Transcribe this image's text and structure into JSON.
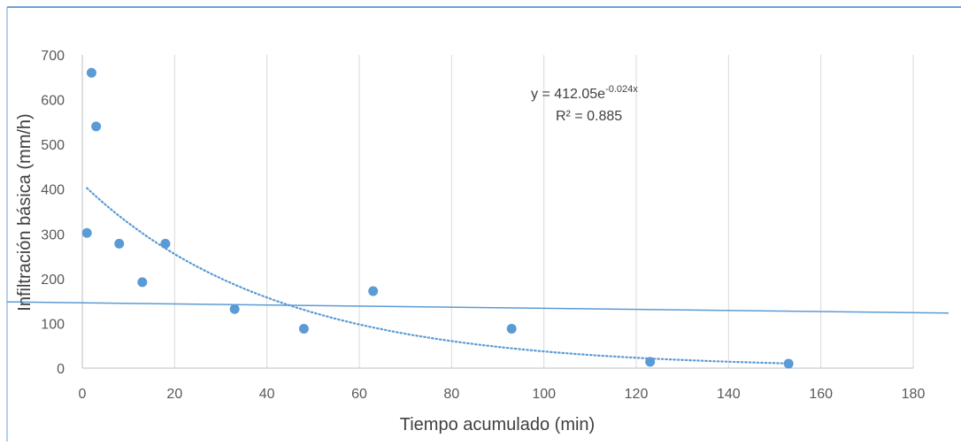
{
  "chart_data": {
    "type": "scatter",
    "title": "",
    "xlabel": "Tiempo acumulado (min)",
    "ylabel": "Infiltración básica (mm/h)",
    "xlim": [
      0,
      180
    ],
    "ylim": [
      0,
      700
    ],
    "xticks": [
      "0",
      "20",
      "40",
      "60",
      "80",
      "100",
      "120",
      "140",
      "160",
      "180"
    ],
    "yticks": [
      "0",
      "100",
      "200",
      "300",
      "400",
      "500",
      "600",
      "700"
    ],
    "grid": "vertical",
    "series": [
      {
        "color": "#5b9bd5",
        "points": [
          {
            "x": 1,
            "y": 302
          },
          {
            "x": 2,
            "y": 660
          },
          {
            "x": 3,
            "y": 540
          },
          {
            "x": 8,
            "y": 278
          },
          {
            "x": 13,
            "y": 192
          },
          {
            "x": 18,
            "y": 278
          },
          {
            "x": 33,
            "y": 132
          },
          {
            "x": 48,
            "y": 88
          },
          {
            "x": 63,
            "y": 172
          },
          {
            "x": 93,
            "y": 88
          },
          {
            "x": 123,
            "y": 14
          },
          {
            "x": 153,
            "y": 10
          }
        ]
      }
    ],
    "trendline": {
      "type": "exponential",
      "a": 412.05,
      "b": -0.024,
      "x_range": [
        1,
        153
      ],
      "color": "#5b9bd5",
      "style": "dotted",
      "equation_base": "y = 412.05e",
      "equation_exp": "-0.024x",
      "r2_label": "R² = 0.885"
    },
    "reference_line": {
      "color": "#5b9bd5",
      "y_at_x0": 146,
      "y_at_xmax": 124
    }
  }
}
